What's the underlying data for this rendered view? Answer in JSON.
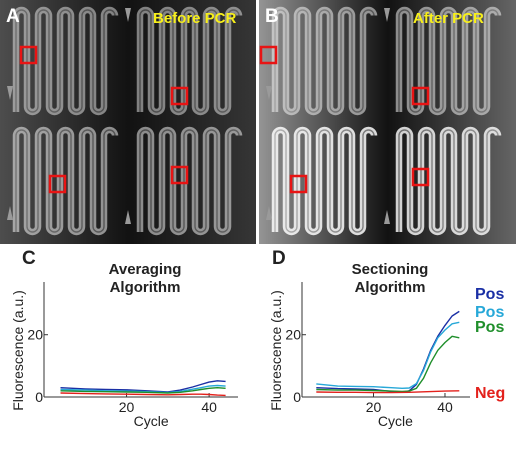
{
  "figure": {
    "panels": [
      {
        "letter": "A",
        "title": "Before PCR"
      },
      {
        "letter": "B",
        "title": "After PCR"
      },
      {
        "letter": "C"
      },
      {
        "letter": "D"
      }
    ]
  },
  "colors": {
    "roi": "#e81414",
    "image_title": "#f7ef1a",
    "pos_dark_blue": "#1a2fa5",
    "pos_blue": "#1e73c9",
    "pos_cyan": "#27a8d8",
    "pos_green": "#1f8f2b",
    "neg_red": "#e3211c"
  },
  "chart_data": [
    {
      "type": "line",
      "title": "Averaging Algorithm",
      "xlabel": "Cycle",
      "ylabel": "Fluorescence (a.u.)",
      "xticks": [
        20,
        40
      ],
      "yticks": [
        0,
        20
      ],
      "xlim": [
        0,
        47
      ],
      "ylim": [
        0,
        35
      ],
      "series": [
        {
          "color": "#1a2fa5",
          "x": [
            4,
            10,
            15,
            20,
            25,
            30,
            33,
            36,
            38,
            40,
            42,
            44
          ],
          "y": [
            3.0,
            2.6,
            2.4,
            2.3,
            2.0,
            1.6,
            2.2,
            3.2,
            4.0,
            4.8,
            5.2,
            5.0
          ]
        },
        {
          "color": "#27a8d8",
          "x": [
            4,
            10,
            15,
            20,
            25,
            30,
            33,
            36,
            38,
            40,
            42,
            44
          ],
          "y": [
            2.4,
            2.2,
            2.0,
            1.9,
            1.7,
            1.4,
            1.8,
            2.5,
            3.0,
            3.5,
            3.7,
            3.5
          ]
        },
        {
          "color": "#1f8f2b",
          "x": [
            4,
            10,
            15,
            20,
            25,
            30,
            33,
            36,
            38,
            40,
            42,
            44
          ],
          "y": [
            2.0,
            1.8,
            1.7,
            1.6,
            1.5,
            1.3,
            1.5,
            2.0,
            2.4,
            2.8,
            3.0,
            2.8
          ]
        },
        {
          "color": "#e3211c",
          "x": [
            4,
            10,
            15,
            20,
            25,
            30,
            33,
            36,
            38,
            40,
            42,
            44
          ],
          "y": [
            1.3,
            1.1,
            1.0,
            0.9,
            0.8,
            0.7,
            0.8,
            0.9,
            0.9,
            0.8,
            0.6,
            0.5
          ]
        }
      ]
    },
    {
      "type": "line",
      "title": "Sectioning Algorithm",
      "xlabel": "Cycle",
      "ylabel": "Fluorescence (a.u.)",
      "xticks": [
        20,
        40
      ],
      "yticks": [
        0,
        20
      ],
      "xlim": [
        0,
        47
      ],
      "ylim": [
        0,
        35
      ],
      "series": [
        {
          "name": "Pos",
          "color": "#1a2fa5",
          "x": [
            4,
            10,
            15,
            20,
            25,
            28,
            30,
            32,
            34,
            36,
            38,
            40,
            42,
            44
          ],
          "y": [
            3.0,
            2.7,
            2.6,
            2.4,
            1.8,
            1.5,
            2.0,
            4.0,
            9.0,
            15.0,
            19.5,
            23.0,
            26.0,
            27.5
          ]
        },
        {
          "name": "Pos",
          "color": "#27a8d8",
          "x": [
            4,
            10,
            15,
            20,
            25,
            28,
            30,
            32,
            34,
            36,
            38,
            40,
            42,
            44
          ],
          "y": [
            4.2,
            3.5,
            3.4,
            3.3,
            3.0,
            2.8,
            2.9,
            4.3,
            8.5,
            14.5,
            19.0,
            21.5,
            23.5,
            24.0
          ]
        },
        {
          "name": "Pos",
          "color": "#1f8f2b",
          "x": [
            4,
            10,
            15,
            20,
            25,
            28,
            30,
            32,
            34,
            36,
            38,
            40,
            42,
            44
          ],
          "y": [
            2.4,
            2.2,
            2.2,
            2.1,
            1.9,
            1.8,
            1.9,
            2.8,
            6.0,
            11.0,
            15.0,
            17.5,
            19.5,
            19.0
          ]
        },
        {
          "name": "Neg",
          "color": "#e3211c",
          "x": [
            4,
            10,
            15,
            20,
            25,
            30,
            35,
            40,
            44
          ],
          "y": [
            1.6,
            1.5,
            1.5,
            1.4,
            1.4,
            1.5,
            1.7,
            1.9,
            2.0
          ]
        }
      ]
    }
  ]
}
